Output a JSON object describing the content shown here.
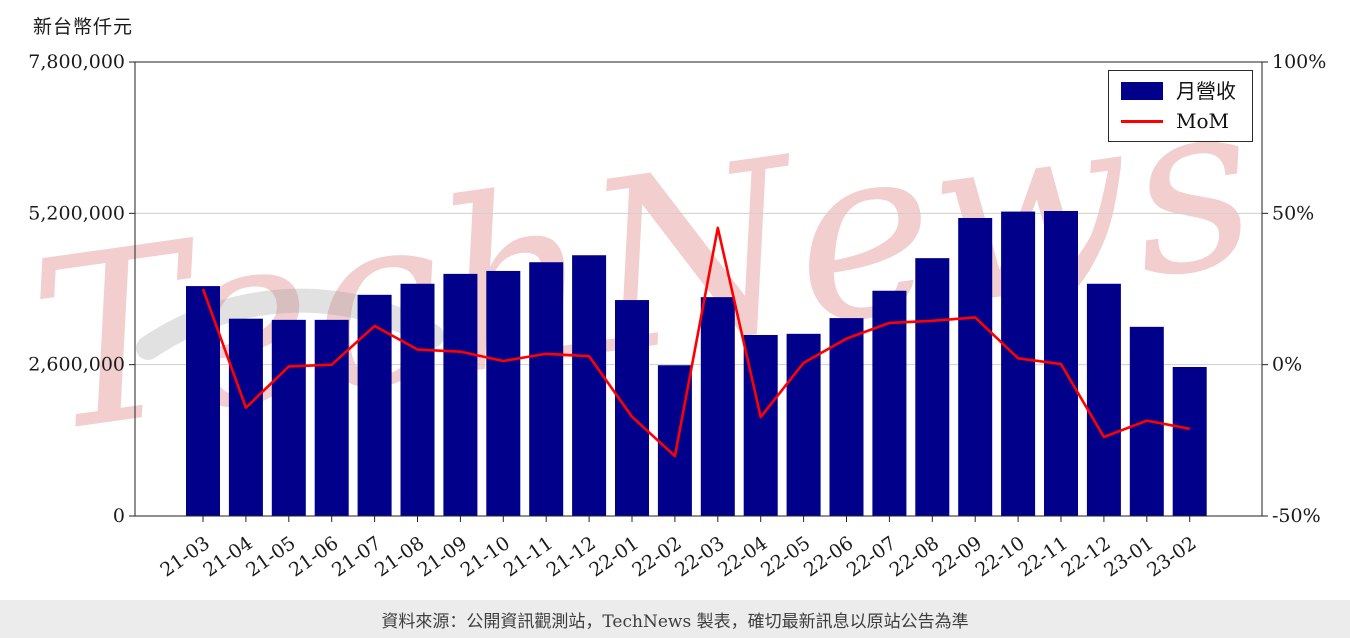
{
  "chart": {
    "unit_label": "新台幣仟元",
    "watermark": "TechNews",
    "legend": {
      "bars": "月營收",
      "line": "MoM"
    },
    "footer": "資料來源：公開資訊觀測站，TechNews 製表，確切最新訊息以原站公告為準"
  },
  "chart_data": {
    "type": "bar",
    "title": "",
    "categories": [
      "21-03",
      "21-04",
      "21-05",
      "21-06",
      "21-07",
      "21-08",
      "21-09",
      "21-10",
      "21-11",
      "21-12",
      "22-01",
      "22-02",
      "22-03",
      "22-04",
      "22-05",
      "22-06",
      "22-07",
      "22-08",
      "22-09",
      "22-10",
      "22-11",
      "22-12",
      "23-01",
      "23-02"
    ],
    "series": [
      {
        "name": "月營收",
        "type": "bar",
        "axis": "left",
        "color": "#00008B",
        "values": [
          3950000,
          3390000,
          3370000,
          3370000,
          3800000,
          3990000,
          4160000,
          4210000,
          4360000,
          4480000,
          3710000,
          2590000,
          3760000,
          3110000,
          3130000,
          3400000,
          3870000,
          4430000,
          5120000,
          5230000,
          5240000,
          3990000,
          3250000,
          2560000
        ]
      },
      {
        "name": "MoM",
        "type": "line",
        "axis": "right",
        "color": "#FF0000",
        "values": [
          25.0,
          -14.2,
          -0.6,
          0.0,
          12.8,
          5.0,
          4.3,
          1.2,
          3.6,
          2.8,
          -17.2,
          -30.2,
          45.2,
          -17.3,
          0.6,
          8.6,
          13.8,
          14.5,
          15.6,
          2.1,
          0.2,
          -23.9,
          -18.5,
          -21.2
        ]
      }
    ],
    "left_axis": {
      "range": [
        0,
        7800000
      ],
      "ticks": [
        0,
        2600000,
        5200000,
        7800000
      ],
      "labels": [
        "0",
        "2,600,000",
        "5,200,000",
        "7,800,000"
      ]
    },
    "right_axis": {
      "range": [
        -50,
        100
      ],
      "ticks": [
        -50,
        0,
        50,
        100
      ],
      "labels": [
        "-50%",
        "0%",
        "50%",
        "100%"
      ]
    },
    "grid": "horizontal",
    "legend_position": "top-right",
    "watermark_color": "#d96c6c"
  }
}
